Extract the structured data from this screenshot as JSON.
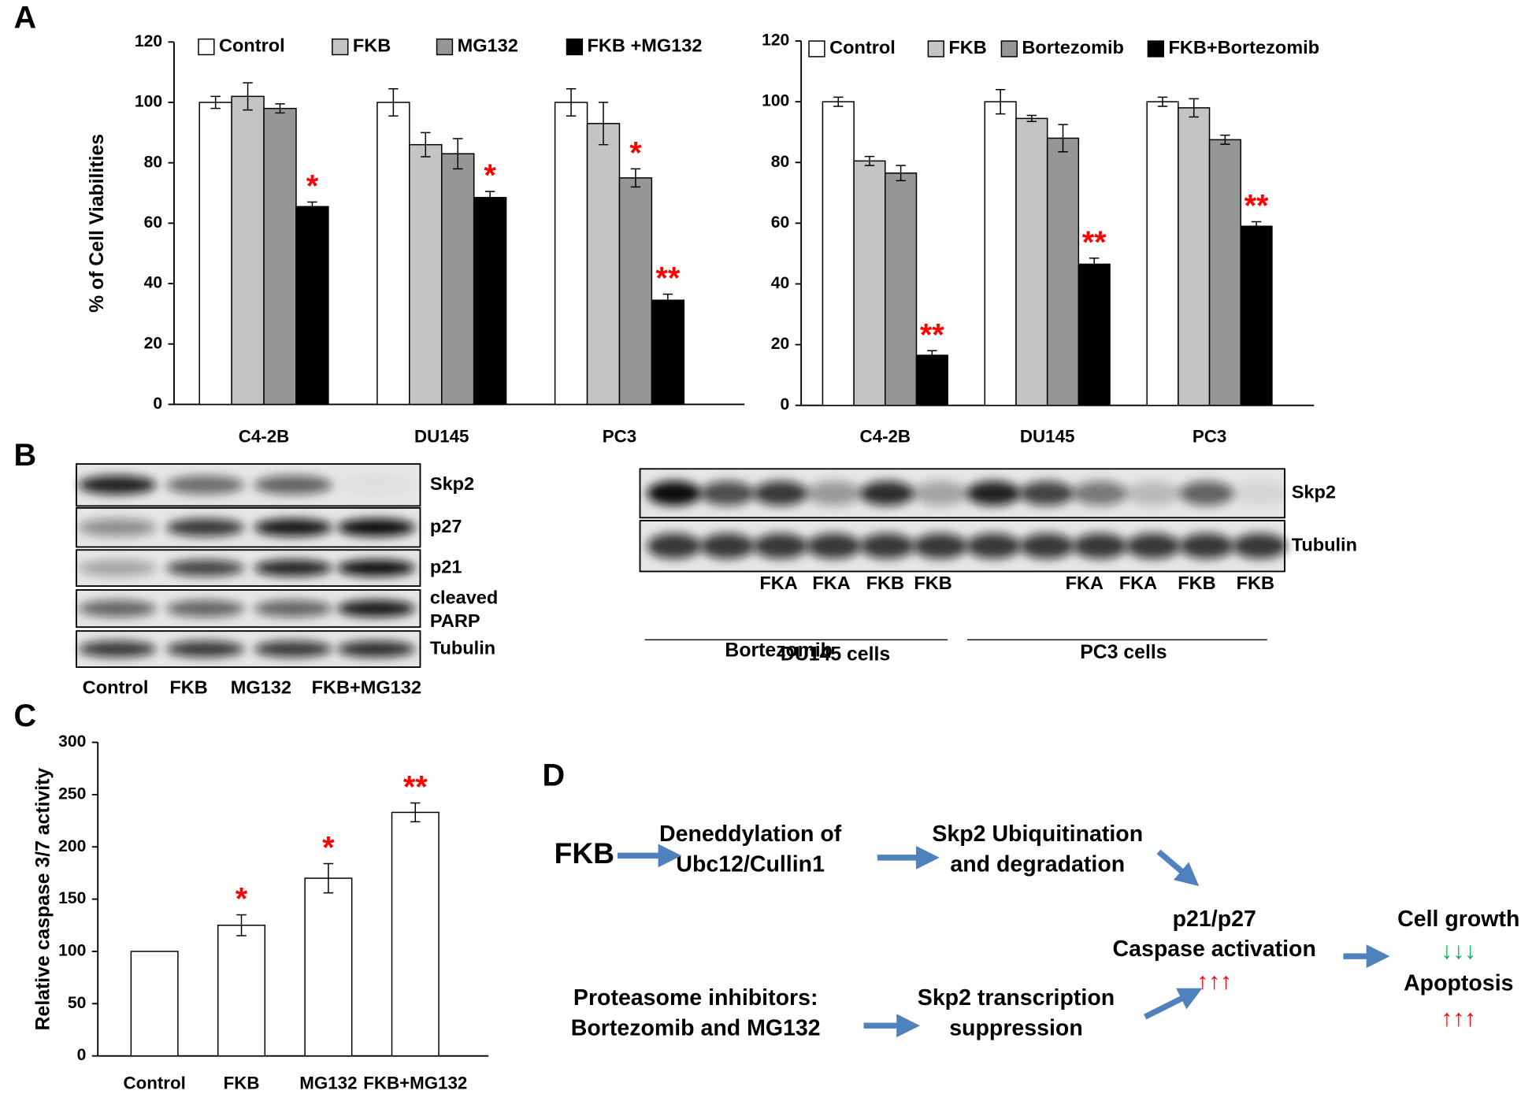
{
  "panel_labels": [
    "A",
    "B",
    "C",
    "D"
  ],
  "chart_data": [
    {
      "type": "bar",
      "y_label": "% of Cell Viabilities",
      "categories": [
        "C4-2B",
        "DU145",
        "PC3"
      ],
      "ylim": [
        0,
        120
      ],
      "yticks": [
        0,
        20,
        40,
        60,
        80,
        100,
        120
      ],
      "series": [
        {
          "name": "Control",
          "color": "#ffffff",
          "values": [
            100,
            100,
            100
          ],
          "errors": [
            2,
            4.5,
            4.5
          ]
        },
        {
          "name": "FKB",
          "color": "#c4c4c4",
          "values": [
            102,
            86,
            93
          ],
          "errors": [
            4.5,
            4,
            7
          ]
        },
        {
          "name": "MG132",
          "color": "#969696",
          "values": [
            98,
            83,
            75
          ],
          "errors": [
            1.5,
            5,
            3
          ],
          "annotations": [
            null,
            null,
            "*"
          ]
        },
        {
          "name": "FKB +MG132",
          "color": "#000000",
          "values": [
            65.5,
            68.5,
            34.5
          ],
          "errors": [
            1.5,
            2,
            2
          ],
          "annotations": [
            "*",
            "*",
            "**"
          ]
        }
      ]
    },
    {
      "type": "bar",
      "categories": [
        "C4-2B",
        "DU145",
        "PC3"
      ],
      "ylim": [
        0,
        120
      ],
      "yticks": [
        0,
        20,
        40,
        60,
        80,
        100,
        120
      ],
      "series": [
        {
          "name": "Control",
          "color": "#ffffff",
          "values": [
            100,
            100,
            100
          ],
          "errors": [
            1.5,
            4,
            1.5
          ]
        },
        {
          "name": "FKB",
          "color": "#c4c4c4",
          "values": [
            80.5,
            94.5,
            98
          ],
          "errors": [
            1.5,
            1,
            3
          ]
        },
        {
          "name": "Bortezomib",
          "color": "#969696",
          "values": [
            76.5,
            88,
            87.5
          ],
          "errors": [
            2.5,
            4.5,
            1.5
          ]
        },
        {
          "name": "FKB+Bortezomib",
          "color": "#000000",
          "values": [
            16.5,
            46.5,
            59
          ],
          "errors": [
            1.5,
            2,
            1.5
          ],
          "annotations": [
            "**",
            "**",
            "**"
          ]
        }
      ]
    },
    {
      "type": "bar",
      "y_label": "Relative caspase 3/7 activity",
      "categories": [
        "Control",
        "FKB",
        "MG132",
        "FKB+MG132"
      ],
      "ylim": [
        0,
        300
      ],
      "yticks": [
        0,
        50,
        100,
        150,
        200,
        250,
        300
      ],
      "color": "#ffffff",
      "values": [
        100,
        125,
        170,
        233
      ],
      "errors": [
        null,
        10,
        14,
        9
      ],
      "annotations": [
        null,
        "*",
        "*",
        "**"
      ]
    }
  ],
  "blot_left": {
    "rows": [
      "Skp2",
      "p27",
      "p21",
      [
        "cleaved",
        "PARP"
      ],
      "Tubulin"
    ],
    "lanes": [
      "Control",
      "FKB",
      "MG132",
      "FKB+MG132"
    ]
  },
  "blot_right": {
    "rows": [
      "Skp2",
      "Tubulin"
    ],
    "lanes": [
      "FKA",
      "FKA",
      "FKB",
      "FKB",
      "FKA",
      "FKA",
      "FKB",
      "FKB"
    ],
    "groups": [
      "Bortezomib",
      "DU145 cells",
      "PC3 cells"
    ]
  },
  "diagram": {
    "start": "FKB",
    "step1": [
      "Deneddylation of",
      "Ubc12/Cullin1"
    ],
    "step2": [
      "Skp2 Ubiquitination",
      "and degradation"
    ],
    "inhibitors": [
      "Proteasome inhibitors:",
      "Bortezomib and MG132"
    ],
    "suppression": [
      "Skp2 transcription",
      "suppression"
    ],
    "effect": [
      "p21/p27",
      "Caspase activation"
    ],
    "effect_arrows": "↑↑↑",
    "outcome_growth": "Cell growth",
    "growth_arrows": "↓↓↓",
    "outcome_apoptosis": "Apoptosis",
    "apoptosis_arrows": "↑↑↑"
  }
}
